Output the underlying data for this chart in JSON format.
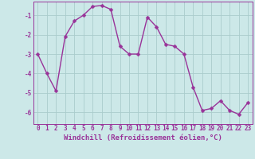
{
  "x": [
    0,
    1,
    2,
    3,
    4,
    5,
    6,
    7,
    8,
    9,
    10,
    11,
    12,
    13,
    14,
    15,
    16,
    17,
    18,
    19,
    20,
    21,
    22,
    23
  ],
  "y": [
    -3.0,
    -4.0,
    -4.9,
    -2.1,
    -1.3,
    -1.0,
    -0.55,
    -0.5,
    -0.7,
    -2.6,
    -3.0,
    -3.0,
    -1.1,
    -1.6,
    -2.5,
    -2.6,
    -3.0,
    -4.7,
    -5.9,
    -5.8,
    -5.4,
    -5.9,
    -6.1,
    -5.5
  ],
  "line_color": "#993399",
  "marker": "D",
  "marker_size": 2.5,
  "bg_color": "#cce8e8",
  "grid_color": "#aacccc",
  "xlabel": "Windchill (Refroidissement éolien,°C)",
  "xlim": [
    -0.5,
    23.5
  ],
  "ylim": [
    -6.6,
    -0.3
  ],
  "yticks": [
    -6,
    -5,
    -4,
    -3,
    -2,
    -1
  ],
  "xticks": [
    0,
    1,
    2,
    3,
    4,
    5,
    6,
    7,
    8,
    9,
    10,
    11,
    12,
    13,
    14,
    15,
    16,
    17,
    18,
    19,
    20,
    21,
    22,
    23
  ],
  "tick_label_size": 5.5,
  "xlabel_size": 6.5,
  "line_width": 1.0,
  "label_color": "#993399"
}
